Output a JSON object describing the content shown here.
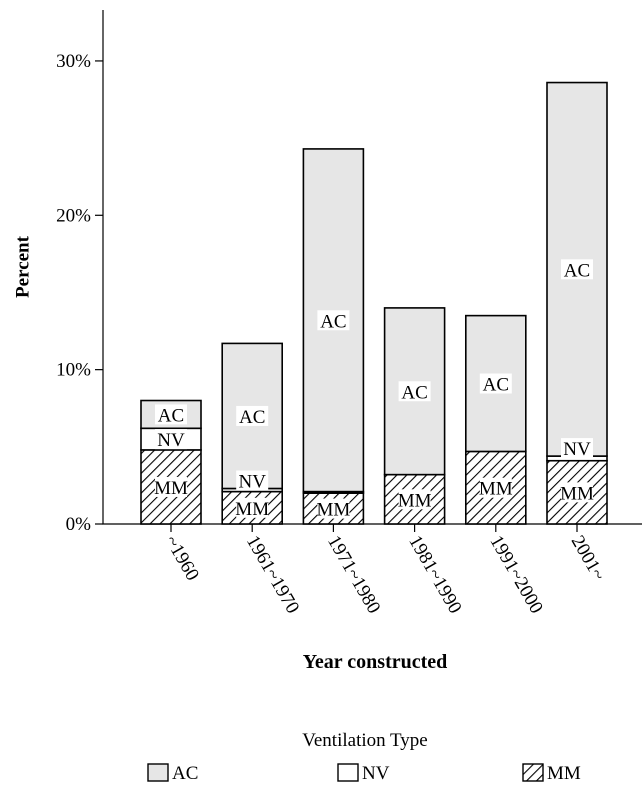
{
  "chart_data": {
    "type": "bar",
    "stacked": true,
    "xlabel": "Year constructed",
    "ylabel": "Percent",
    "ylim": [
      0,
      33.3
    ],
    "yticks": [
      0,
      10,
      20,
      30
    ],
    "ytick_labels": [
      "0%",
      "10%",
      "20%",
      "30%"
    ],
    "categories": [
      "~1960",
      "1961~1970",
      "1971~1980",
      "1981~1990",
      "1991~2000",
      "2001~"
    ],
    "series": [
      {
        "name": "MM",
        "values": [
          4.8,
          2.1,
          2.0,
          3.2,
          4.7,
          4.1
        ]
      },
      {
        "name": "NV",
        "values": [
          1.4,
          0.2,
          0.1,
          0.0,
          0.0,
          0.3
        ]
      },
      {
        "name": "AC",
        "values": [
          1.8,
          9.4,
          22.2,
          10.8,
          8.8,
          24.2
        ]
      }
    ],
    "legend": {
      "title": "Ventilation Type",
      "position": "bottom",
      "items": [
        "AC",
        "NV",
        "MM"
      ]
    },
    "segment_labels": {
      "AC": "AC",
      "NV": "NV",
      "MM": "MM"
    },
    "colors": {
      "AC": "#e6e6e6",
      "NV": "#ffffff",
      "MM": "hatch"
    }
  }
}
